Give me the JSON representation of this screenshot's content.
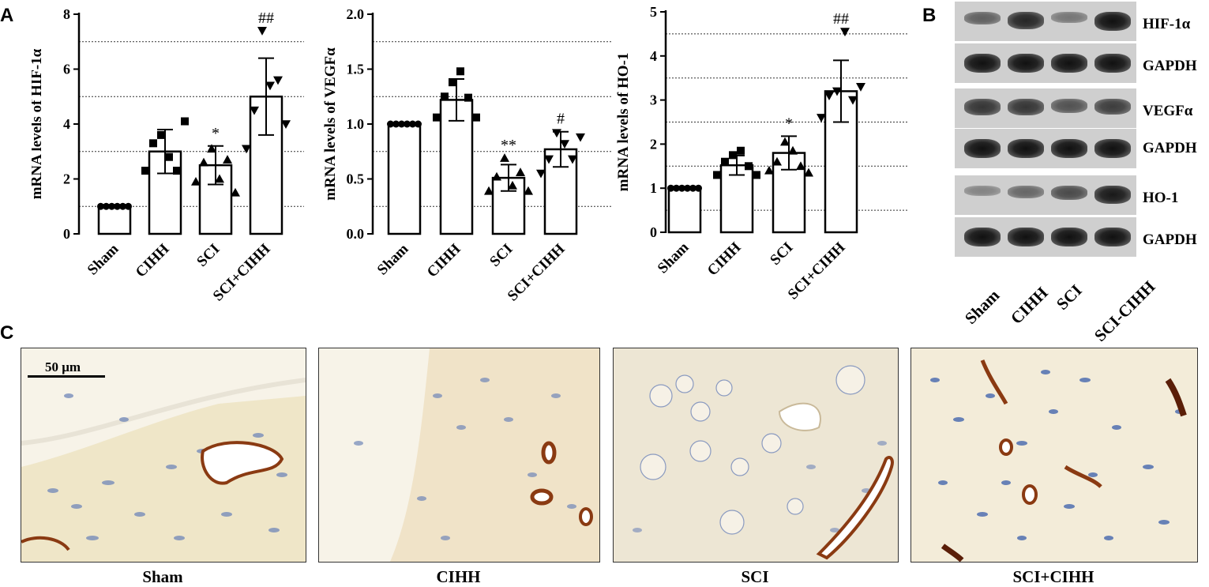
{
  "panels": {
    "a": "A",
    "b": "B",
    "c": "C"
  },
  "chart_data": [
    {
      "type": "bar",
      "ylabel": "mRNA levels of HIF-1α",
      "categories": [
        "Sham",
        "CIHH",
        "SCI",
        "SCI+CIHH"
      ],
      "values": [
        1.0,
        3.0,
        2.5,
        5.0
      ],
      "errors": [
        0.03,
        0.8,
        0.7,
        1.4
      ],
      "markers": [
        "circle",
        "square",
        "triangle",
        "triangle-down"
      ],
      "points": [
        [
          1,
          1,
          1,
          1,
          1,
          1
        ],
        [
          2.3,
          3.3,
          3.6,
          2.8,
          2.3,
          4.1
        ],
        [
          1.9,
          2.6,
          3.1,
          2.0,
          2.7,
          1.5
        ],
        [
          3.1,
          4.5,
          7.4,
          5.4,
          5.6,
          4.0
        ]
      ],
      "annotations": [
        "",
        "",
        "*",
        "##"
      ],
      "ylim": [
        0,
        8
      ],
      "yticks": [
        0,
        2,
        4,
        6,
        8
      ],
      "ytick_labels": [
        "0",
        "2",
        "4",
        "6",
        "8"
      ],
      "gridlines": [
        1,
        3,
        5,
        7
      ]
    },
    {
      "type": "bar",
      "ylabel": "mRNA levels of VEGFα",
      "categories": [
        "Sham",
        "CIHH",
        "SCI",
        "SCI+CIHH"
      ],
      "values": [
        1.0,
        1.22,
        0.51,
        0.77
      ],
      "errors": [
        0.01,
        0.19,
        0.12,
        0.16
      ],
      "markers": [
        "circle",
        "square",
        "triangle",
        "triangle-down"
      ],
      "points": [
        [
          1,
          1,
          1,
          1,
          1,
          1
        ],
        [
          1.06,
          1.25,
          1.38,
          1.48,
          1.24,
          1.06
        ],
        [
          0.39,
          0.52,
          0.69,
          0.44,
          0.56,
          0.39
        ],
        [
          0.55,
          0.68,
          0.92,
          0.82,
          0.68,
          0.88
        ]
      ],
      "annotations": [
        "",
        "",
        "**",
        "#"
      ],
      "ylim": [
        0,
        2.0
      ],
      "yticks": [
        0,
        0.5,
        1.0,
        1.5,
        2.0
      ],
      "ytick_labels": [
        "0.0",
        "0.5",
        "1.0",
        "1.5",
        "2.0"
      ],
      "gridlines": [
        0.25,
        0.75,
        1.25,
        1.75
      ]
    },
    {
      "type": "bar",
      "ylabel": "mRNA levels of HO-1",
      "categories": [
        "Sham",
        "CIHH",
        "SCI",
        "SCI+CIHH"
      ],
      "values": [
        1.0,
        1.52,
        1.8,
        3.2
      ],
      "errors": [
        0.01,
        0.22,
        0.38,
        0.7
      ],
      "markers": [
        "circle",
        "square",
        "triangle",
        "triangle-down"
      ],
      "points": [
        [
          1,
          1,
          1,
          1,
          1,
          1
        ],
        [
          1.3,
          1.6,
          1.75,
          1.85,
          1.5,
          1.3
        ],
        [
          1.4,
          1.6,
          2.05,
          1.85,
          1.5,
          1.35
        ],
        [
          2.6,
          3.1,
          3.2,
          4.55,
          3.0,
          3.3
        ]
      ],
      "annotations": [
        "",
        "",
        "*",
        "##"
      ],
      "ylim": [
        0,
        5
      ],
      "yticks": [
        0,
        1,
        2,
        3,
        4,
        5
      ],
      "ytick_labels": [
        "0",
        "1",
        "2",
        "3",
        "4",
        "5"
      ],
      "gridlines": [
        0.5,
        1.5,
        2.5,
        3.5,
        4.5
      ]
    }
  ],
  "western_blot": {
    "rows": [
      {
        "label": "HIF-1α",
        "intensities": [
          0.45,
          0.85,
          0.3,
          1.0
        ]
      },
      {
        "label": "GAPDH",
        "intensities": [
          1.0,
          1.0,
          1.0,
          1.0
        ]
      },
      {
        "label": "VEGFα",
        "intensities": [
          0.75,
          0.75,
          0.55,
          0.7
        ]
      },
      {
        "label": "GAPDH",
        "intensities": [
          1.0,
          1.0,
          1.0,
          1.0
        ]
      },
      {
        "label": "HO-1",
        "intensities": [
          0.2,
          0.4,
          0.6,
          0.95
        ]
      },
      {
        "label": "GAPDH",
        "intensities": [
          1.0,
          1.0,
          1.0,
          1.0
        ]
      }
    ],
    "lanes": [
      "Sham",
      "CIHH",
      "SCI",
      "SCI-CIHH"
    ]
  },
  "micrographs": {
    "scale_bar": "50 μm",
    "labels": [
      "Sham",
      "CIHH",
      "SCI",
      "SCI+CIHH"
    ],
    "colors": {
      "tissue": "#efe9d4",
      "tissue_light": "#f7f3e8",
      "nuclei": "#6f86b8",
      "vessel": "#8a3a12"
    }
  }
}
